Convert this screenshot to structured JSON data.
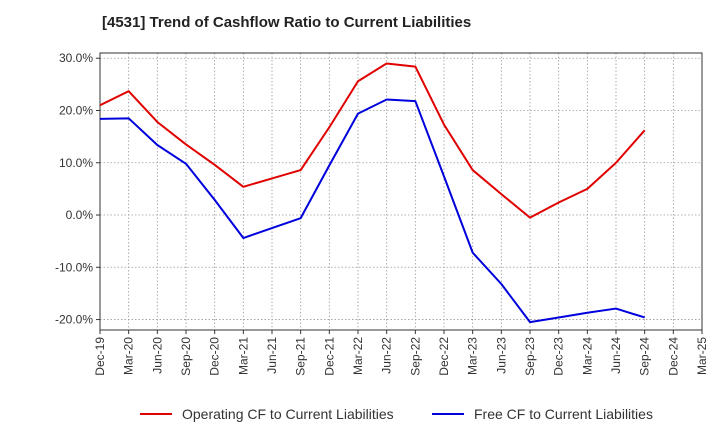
{
  "chart_data": {
    "type": "line",
    "title": "[4531]  Trend of Cashflow Ratio to Current Liabilities",
    "xlabel": "",
    "ylabel": "",
    "categories": [
      "Dec-19",
      "Mar-20",
      "Jun-20",
      "Sep-20",
      "Dec-20",
      "Mar-21",
      "Jun-21",
      "Sep-21",
      "Dec-21",
      "Mar-22",
      "Jun-22",
      "Sep-22",
      "Dec-22",
      "Mar-23",
      "Jun-23",
      "Sep-23",
      "Dec-23",
      "Mar-24",
      "Jun-24",
      "Sep-24",
      "Dec-24",
      "Mar-25"
    ],
    "ylim": [
      -22,
      31
    ],
    "yticks": [
      30,
      20,
      10,
      0,
      -10,
      -20
    ],
    "ytick_labels": [
      "30.0%",
      "20.0%",
      "10.0%",
      "0.0%",
      "-10.0%",
      "-20.0%"
    ],
    "grid": true,
    "legend_position": "bottom",
    "series": [
      {
        "name": "Operating CF to Current Liabilities",
        "color": "#e00000",
        "values": [
          21.0,
          23.7,
          17.8,
          13.5,
          9.6,
          5.4,
          7.0,
          8.6,
          16.8,
          25.6,
          29.0,
          28.4,
          17.3,
          8.6,
          4.0,
          -0.5,
          2.4,
          5.0,
          10.0,
          16.2,
          null,
          null
        ]
      },
      {
        "name": "Free CF to Current Liabilities",
        "color": "#0000dd",
        "values": [
          18.4,
          18.5,
          13.4,
          9.8,
          2.9,
          -4.4,
          -2.5,
          -0.6,
          9.5,
          19.4,
          22.1,
          21.8,
          7.4,
          -7.2,
          -13.2,
          -20.5,
          -19.6,
          -18.7,
          -17.9,
          -19.6,
          null,
          null
        ]
      }
    ]
  }
}
